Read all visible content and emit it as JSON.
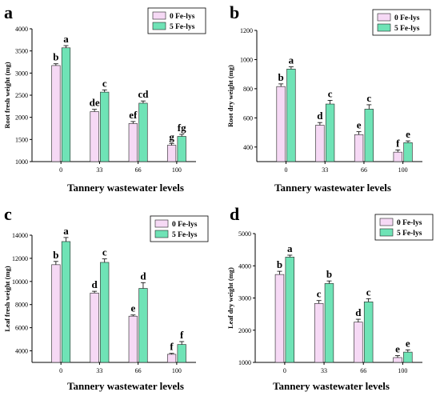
{
  "colors": {
    "fe0": "#f6d9f5",
    "fe5": "#6fe3b6",
    "bar_stroke": "#222222",
    "axis": "#000000"
  },
  "chart_data": [
    {
      "type": "bar",
      "panel": "a",
      "xlabel": "Tannery wastewater levels",
      "ylabel": "Root fresh weight (mg)",
      "categories": [
        "0",
        "33",
        "66",
        "100"
      ],
      "ylim": [
        1000,
        4000
      ],
      "yticks": [
        1000,
        1500,
        2000,
        2500,
        3000,
        3500,
        4000
      ],
      "legend_position": "top-right",
      "series": [
        {
          "name": "0 Fe-lys",
          "values": [
            3170,
            2130,
            1860,
            1370
          ],
          "errors": [
            40,
            50,
            45,
            40
          ],
          "labels": [
            "b",
            "de",
            "ef",
            "g"
          ]
        },
        {
          "name": "5 Fe-lys",
          "values": [
            3570,
            2570,
            2320,
            1570
          ],
          "errors": [
            50,
            50,
            50,
            45
          ],
          "labels": [
            "a",
            "c",
            "cd",
            "fg"
          ]
        }
      ]
    },
    {
      "type": "bar",
      "panel": "b",
      "xlabel": "Tannery wastewater levels",
      "ylabel": "Root dry weight (mg)",
      "categories": [
        "0",
        "33",
        "66",
        "100"
      ],
      "ylim": [
        300,
        1200
      ],
      "yticks": [
        400,
        600,
        800,
        1000,
        1200
      ],
      "legend_position": "top-right",
      "series": [
        {
          "name": "0 Fe-lys",
          "values": [
            815,
            550,
            485,
            365
          ],
          "errors": [
            18,
            18,
            20,
            15
          ],
          "labels": [
            "b",
            "d",
            "e",
            "f"
          ]
        },
        {
          "name": "5 Fe-lys",
          "values": [
            935,
            695,
            660,
            430
          ],
          "errors": [
            15,
            25,
            30,
            12
          ],
          "labels": [
            "a",
            "c",
            "c",
            "e"
          ]
        }
      ]
    },
    {
      "type": "bar",
      "panel": "c",
      "xlabel": "Tannery wastewater levels",
      "ylabel": "Leaf fresh weight (mg)",
      "categories": [
        "0",
        "33",
        "66",
        "100"
      ],
      "ylim": [
        3000,
        14000
      ],
      "yticks": [
        4000,
        6000,
        8000,
        10000,
        12000,
        14000
      ],
      "legend_position": "top-right",
      "series": [
        {
          "name": "0 Fe-lys",
          "values": [
            11450,
            9000,
            7000,
            3700
          ],
          "errors": [
            280,
            150,
            100,
            80
          ],
          "labels": [
            "b",
            "d",
            "e",
            "f"
          ]
        },
        {
          "name": "5 Fe-lys",
          "values": [
            13450,
            11650,
            9400,
            4550
          ],
          "errors": [
            350,
            300,
            500,
            250
          ],
          "labels": [
            "a",
            "c",
            "d",
            "f"
          ]
        }
      ]
    },
    {
      "type": "bar",
      "panel": "d",
      "xlabel": "Tannery wastewater levels",
      "ylabel": "Leaf dry weight (mg)",
      "categories": [
        "0",
        "33",
        "66",
        "100"
      ],
      "ylim": [
        1000,
        5000
      ],
      "yticks": [
        1000,
        2000,
        3000,
        4000,
        5000
      ],
      "legend_position": "top-right",
      "series": [
        {
          "name": "0 Fe-lys",
          "values": [
            3730,
            2830,
            2250,
            1150
          ],
          "errors": [
            100,
            90,
            90,
            60
          ],
          "labels": [
            "b",
            "c",
            "d",
            "e"
          ]
        },
        {
          "name": "5 Fe-lys",
          "values": [
            4270,
            3450,
            2880,
            1320
          ],
          "errors": [
            60,
            80,
            100,
            70
          ],
          "labels": [
            "a",
            "b",
            "c",
            "e"
          ]
        }
      ]
    }
  ]
}
